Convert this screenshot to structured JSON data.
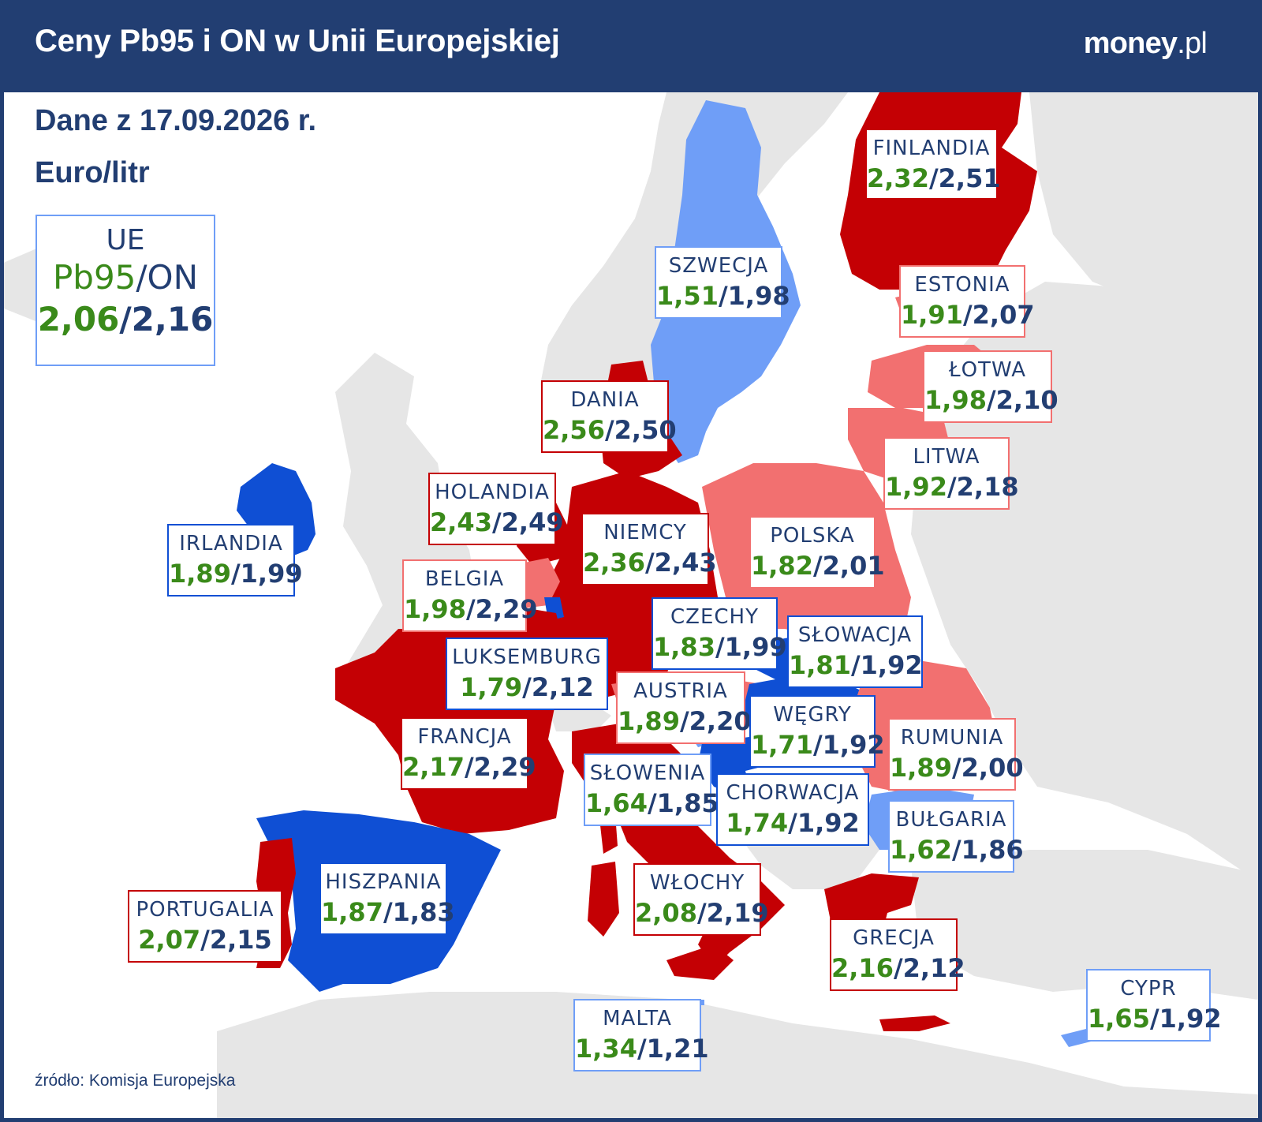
{
  "header": {
    "title": "Ceny Pb95 i ON w Unii Europejskiej",
    "brand_main": "money",
    "brand_tld": ".pl"
  },
  "info": {
    "date": "Dane z 17.09.2026 r.",
    "unit": "Euro/litr",
    "source": "źródło: Komisja Europejska"
  },
  "eu": {
    "name": "UE",
    "fuel_pb": "Pb95",
    "fuel_on": "ON",
    "sep": "/",
    "pb95": "2,06",
    "on": "2,16"
  },
  "colors": {
    "high": "#c40004",
    "mid_high": "#f27070",
    "mid_low": "#6f9ef7",
    "low": "#0f4fd4",
    "non_eu": "#e6e6e6",
    "text": "#223e72",
    "pb95_text": "#3a8a1a"
  },
  "countries": [
    {
      "id": "finlandia",
      "name": "FINLANDIA",
      "pb95": "2,32",
      "on": "2,51",
      "category": "high"
    },
    {
      "id": "szwecja",
      "name": "SZWECJA",
      "pb95": "1,51",
      "on": "1,98",
      "category": "mid_low"
    },
    {
      "id": "estonia",
      "name": "ESTONIA",
      "pb95": "1,91",
      "on": "2,07",
      "category": "mid_high"
    },
    {
      "id": "lotwa",
      "name": "ŁOTWA",
      "pb95": "1,98",
      "on": "2,10",
      "category": "mid_high"
    },
    {
      "id": "dania",
      "name": "DANIA",
      "pb95": "2,56",
      "on": "2,50",
      "category": "high"
    },
    {
      "id": "litwa",
      "name": "LITWA",
      "pb95": "1,92",
      "on": "2,18",
      "category": "mid_high"
    },
    {
      "id": "holandia",
      "name": "HOLANDIA",
      "pb95": "2,43",
      "on": "2,49",
      "category": "high"
    },
    {
      "id": "irlandia",
      "name": "IRLANDIA",
      "pb95": "1,89",
      "on": "1,99",
      "category": "low"
    },
    {
      "id": "niemcy",
      "name": "NIEMCY",
      "pb95": "2,36",
      "on": "2,43",
      "category": "high"
    },
    {
      "id": "polska",
      "name": "POLSKA",
      "pb95": "1,82",
      "on": "2,01",
      "category": "mid_high"
    },
    {
      "id": "belgia",
      "name": "BELGIA",
      "pb95": "1,98",
      "on": "2,29",
      "category": "mid_high"
    },
    {
      "id": "czechy",
      "name": "CZECHY",
      "pb95": "1,83",
      "on": "1,99",
      "category": "low"
    },
    {
      "id": "slowacja",
      "name": "SŁOWACJA",
      "pb95": "1,81",
      "on": "1,92",
      "category": "low"
    },
    {
      "id": "luksemburg",
      "name": "LUKSEMBURG",
      "pb95": "1,79",
      "on": "2,12",
      "category": "low"
    },
    {
      "id": "austria",
      "name": "AUSTRIA",
      "pb95": "1,89",
      "on": "2,20",
      "category": "mid_high"
    },
    {
      "id": "wegry",
      "name": "WĘGRY",
      "pb95": "1,71",
      "on": "1,92",
      "category": "low"
    },
    {
      "id": "francja",
      "name": "FRANCJA",
      "pb95": "2,17",
      "on": "2,29",
      "category": "high"
    },
    {
      "id": "rumunia",
      "name": "RUMUNIA",
      "pb95": "1,89",
      "on": "2,00",
      "category": "mid_high"
    },
    {
      "id": "slowenia",
      "name": "SŁOWENIA",
      "pb95": "1,64",
      "on": "1,85",
      "category": "mid_low"
    },
    {
      "id": "chorwacja",
      "name": "CHORWACJA",
      "pb95": "1,74",
      "on": "1,92",
      "category": "low"
    },
    {
      "id": "bulgaria",
      "name": "BUŁGARIA",
      "pb95": "1,62",
      "on": "1,86",
      "category": "mid_low"
    },
    {
      "id": "hiszpania",
      "name": "HISZPANIA",
      "pb95": "1,87",
      "on": "1,83",
      "category": "low"
    },
    {
      "id": "wlochy",
      "name": "WŁOCHY",
      "pb95": "2,08",
      "on": "2,19",
      "category": "high"
    },
    {
      "id": "portugalia",
      "name": "PORTUGALIA",
      "pb95": "2,07",
      "on": "2,15",
      "category": "high"
    },
    {
      "id": "grecja",
      "name": "GRECJA",
      "pb95": "2,16",
      "on": "2,12",
      "category": "high"
    },
    {
      "id": "cypr",
      "name": "CYPR",
      "pb95": "1,65",
      "on": "1,92",
      "category": "mid_low"
    },
    {
      "id": "malta",
      "name": "MALTA",
      "pb95": "1,34",
      "on": "1,21",
      "category": "mid_low"
    }
  ]
}
